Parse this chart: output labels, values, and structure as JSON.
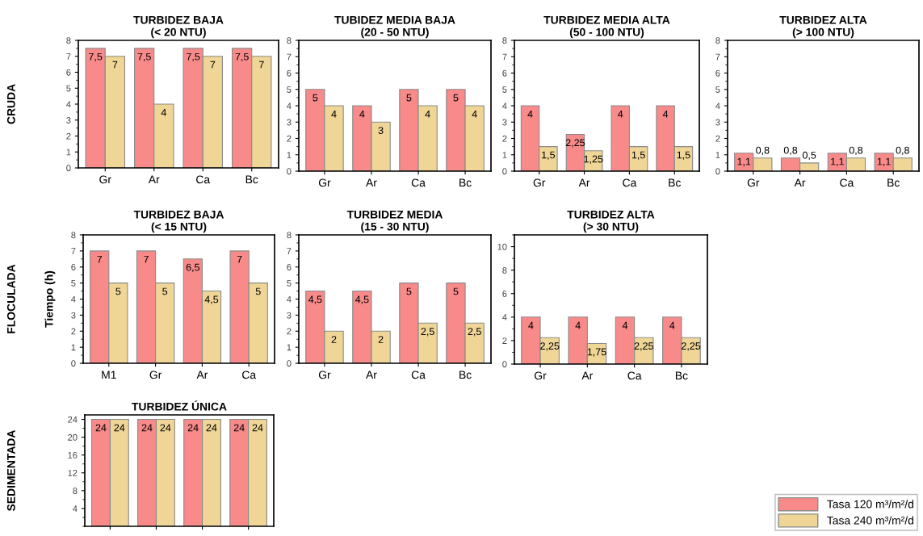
{
  "chart_data": [
    {
      "type": "bar",
      "title": "TURBIDEZ BAJA\n(< 20 NTU)",
      "annotations": [
        "CRUDA"
      ],
      "categories": [
        "Gr",
        "Ar",
        "Ca",
        "Bc"
      ],
      "ylim": [
        0,
        8
      ],
      "yticks": [
        0,
        1,
        2,
        3,
        4,
        5,
        6,
        7,
        8
      ],
      "series": [
        {
          "color": "#f88a8a",
          "values": [
            7.5,
            7.5,
            7.5,
            7.5
          ],
          "value_labels": [
            "7,5",
            "7,5",
            "7,5",
            "7,5"
          ]
        },
        {
          "color": "#f0d696",
          "values": [
            7,
            4,
            7,
            7
          ],
          "value_labels": [
            "7",
            "4",
            "7",
            "7"
          ]
        }
      ]
    },
    {
      "type": "bar",
      "title": "TUBIDEZ MEDIA BAJA\n(20 - 50 NTU)",
      "categories": [
        "Gr",
        "Ar",
        "Ca",
        "Bc"
      ],
      "ylim": [
        0,
        8
      ],
      "yticks": [
        0,
        1,
        2,
        3,
        4,
        5,
        6,
        7,
        8
      ],
      "series": [
        {
          "color": "#f88a8a",
          "values": [
            5,
            4,
            5,
            5
          ],
          "value_labels": [
            "5",
            "4",
            "5",
            "5"
          ]
        },
        {
          "color": "#f0d696",
          "values": [
            4,
            3,
            4,
            4
          ],
          "value_labels": [
            "4",
            "3",
            "4",
            "4"
          ]
        }
      ]
    },
    {
      "type": "bar",
      "title": "TURBIDEZ MEDIA ALTA\n(50 - 100 NTU)",
      "categories": [
        "Gr",
        "Ar",
        "Ca",
        "Bc"
      ],
      "ylim": [
        0,
        8
      ],
      "yticks": [
        0,
        1,
        2,
        3,
        4,
        5,
        6,
        7,
        8
      ],
      "series": [
        {
          "color": "#f88a8a",
          "values": [
            4,
            2.25,
            4,
            4
          ],
          "value_labels": [
            "4",
            "2,25",
            "4",
            "4"
          ]
        },
        {
          "color": "#f0d696",
          "values": [
            1.5,
            1.25,
            1.5,
            1.5
          ],
          "value_labels": [
            "1,5",
            "1,25",
            "1,5",
            "1,5"
          ]
        }
      ]
    },
    {
      "type": "bar",
      "title": "TURBIDEZ ALTA\n(> 100 NTU)",
      "categories": [
        "Gr",
        "Ar",
        "Ca",
        "Bc"
      ],
      "ylim": [
        0,
        8
      ],
      "yticks": [
        0,
        1,
        2,
        3,
        4,
        5,
        6,
        7,
        8
      ],
      "series": [
        {
          "color": "#f88a8a",
          "values": [
            1.1,
            0.8,
            1.1,
            1.1
          ],
          "value_labels": [
            "1,1",
            "0,8",
            "1,1",
            "1,1"
          ]
        },
        {
          "color": "#f0d696",
          "values": [
            0.8,
            0.5,
            0.8,
            0.8
          ],
          "value_labels": [
            "0,8",
            "0,5",
            "0,8",
            "0,8"
          ]
        }
      ]
    },
    {
      "type": "bar",
      "title": "TURBIDEZ BAJA\n(< 15 NTU)",
      "ylabel": "Tiempo (h)",
      "annotations": [
        "FLOCULADA"
      ],
      "categories": [
        "M1",
        "Gr",
        "Ar",
        "Ca"
      ],
      "ylim": [
        0,
        8
      ],
      "yticks": [
        0,
        1,
        2,
        3,
        4,
        5,
        6,
        7,
        8
      ],
      "series": [
        {
          "color": "#f88a8a",
          "values": [
            7,
            7,
            6.5,
            7
          ],
          "value_labels": [
            "7",
            "7",
            "6,5",
            "7"
          ]
        },
        {
          "color": "#f0d696",
          "values": [
            5,
            5,
            4.5,
            5
          ],
          "value_labels": [
            "5",
            "5",
            "4,5",
            "5"
          ]
        }
      ]
    },
    {
      "type": "bar",
      "title": "TURBIDEZ MEDIA\n(15 - 30 NTU)",
      "categories": [
        "Gr",
        "Ar",
        "Ca",
        "Bc"
      ],
      "ylim": [
        0,
        8
      ],
      "yticks": [
        0,
        1,
        2,
        3,
        4,
        5,
        6,
        7,
        8
      ],
      "series": [
        {
          "color": "#f88a8a",
          "values": [
            4.5,
            4.5,
            5,
            5
          ],
          "value_labels": [
            "4,5",
            "4,5",
            "5",
            "5"
          ]
        },
        {
          "color": "#f0d696",
          "values": [
            2,
            2,
            2.5,
            2.5
          ],
          "value_labels": [
            "2",
            "2",
            "2,5",
            "2,5"
          ]
        }
      ]
    },
    {
      "type": "bar",
      "title": "TURBIDEZ ALTA\n(> 30 NTU)",
      "categories": [
        "Gr",
        "Ar",
        "Ca",
        "Bc"
      ],
      "ylim": [
        0,
        11
      ],
      "yticks": [
        0,
        2,
        4,
        6,
        8,
        10
      ],
      "series": [
        {
          "color": "#f88a8a",
          "values": [
            4,
            4,
            4,
            4
          ],
          "value_labels": [
            "4",
            "4",
            "4",
            "4"
          ]
        },
        {
          "color": "#f0d696",
          "values": [
            2.25,
            1.75,
            2.25,
            2.25
          ],
          "value_labels": [
            "2,25",
            "1,75",
            "2,25",
            "2,25"
          ]
        }
      ]
    },
    {
      "type": "bar",
      "title": "TURBIDEZ ÚNICA",
      "annotations": [
        "SEDIMENTADA"
      ],
      "categories": [
        null,
        null,
        null,
        null
      ],
      "ylim": [
        0,
        25
      ],
      "yticks": [
        4,
        8,
        12,
        16,
        20,
        24
      ],
      "legend": "bottom right",
      "series": [
        {
          "name": "Tasa 120 m³/m²/d",
          "color": "#f88a8a",
          "values": [
            24,
            24,
            24,
            24
          ],
          "value_labels": [
            "24",
            "24",
            "24",
            "24"
          ]
        },
        {
          "name": "Tasa 240 m³/m²/d",
          "color": "#f0d696",
          "values": [
            24,
            24,
            24,
            24
          ],
          "value_labels": [
            "24",
            "24",
            "24",
            "24"
          ]
        }
      ]
    }
  ]
}
